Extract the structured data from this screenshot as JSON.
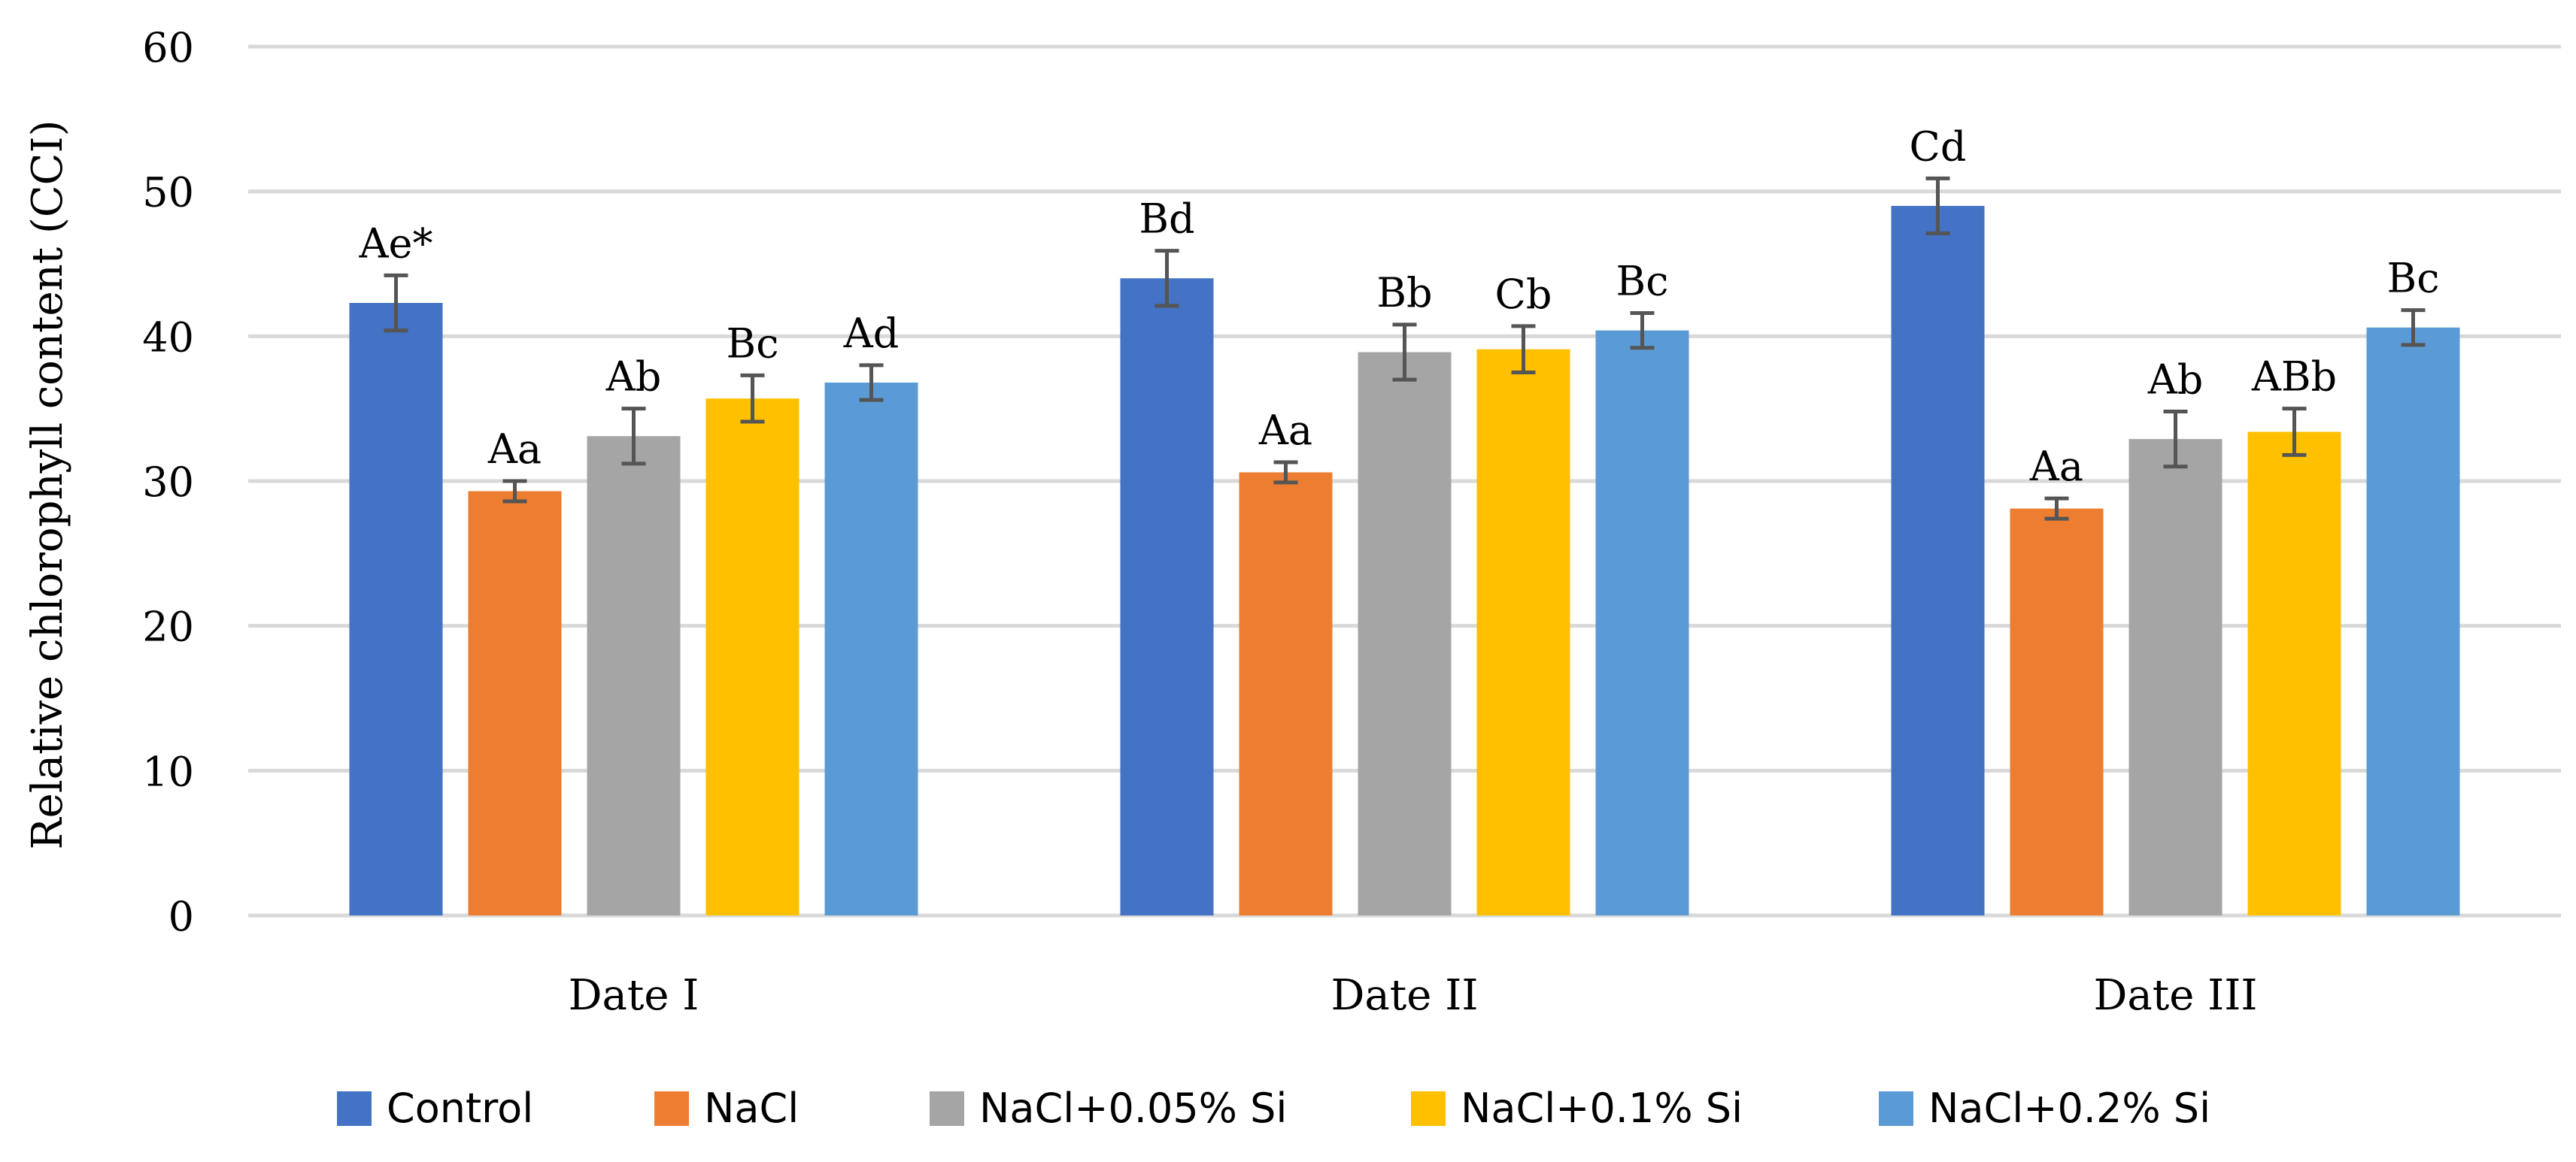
{
  "chart_data": {
    "type": "bar",
    "title": "",
    "xlabel": "",
    "ylabel": "Relative chlorophyll content (CCI)",
    "ylim": [
      0,
      60
    ],
    "yticks": [
      0,
      10,
      20,
      30,
      40,
      50,
      60
    ],
    "grid": true,
    "legend_position": "bottom",
    "categories": [
      "Date I",
      "Date II",
      "Date III"
    ],
    "series": [
      {
        "name": "Control",
        "color": "#4472C4",
        "values": [
          42.3,
          44.0,
          49.0
        ],
        "errors": [
          1.9,
          1.9,
          1.9
        ],
        "labels": [
          "Ae*",
          "Bd",
          "Cd"
        ]
      },
      {
        "name": "NaCl",
        "color": "#ED7D31",
        "values": [
          29.3,
          30.6,
          28.1
        ],
        "errors": [
          0.7,
          0.7,
          0.7
        ],
        "labels": [
          "Aa",
          "Aa",
          "Aa"
        ]
      },
      {
        "name": "NaCl+0.05% Si",
        "color": "#A5A5A5",
        "values": [
          33.1,
          38.9,
          32.9
        ],
        "errors": [
          1.9,
          1.9,
          1.9
        ],
        "labels": [
          "Ab",
          "Bb",
          "Ab"
        ]
      },
      {
        "name": "NaCl+0.1% Si",
        "color": "#FFC000",
        "values": [
          35.7,
          39.1,
          33.4
        ],
        "errors": [
          1.6,
          1.6,
          1.6
        ],
        "labels": [
          "Bc",
          "Cb",
          "ABb"
        ]
      },
      {
        "name": "NaCl+0.2% Si",
        "color": "#5B9BD5",
        "values": [
          36.8,
          40.4,
          40.6
        ],
        "errors": [
          1.2,
          1.2,
          1.2
        ],
        "labels": [
          "Ad",
          "Bc",
          "Bc"
        ]
      }
    ]
  }
}
